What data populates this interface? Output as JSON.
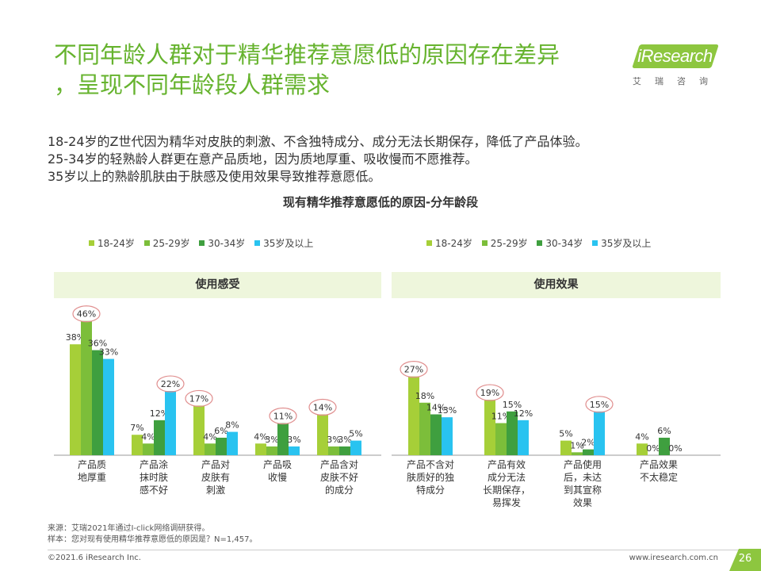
{
  "header": {
    "title_lines": [
      "不同年龄人群对于精华推荐意愿低的原因存在差异",
      "，呈现不同年龄段人群需求"
    ],
    "logo_text": "iResearch",
    "logo_sub": "艾瑞咨询"
  },
  "summary": [
    "18-24岁的Z世代因为精华对皮肤的刺激、不含独特成分、成分无法长期保存，降低了产品体验。",
    "25-34岁的轻熟龄人群更在意产品质地，因为质地厚重、吸收慢而不愿推荐。",
    "35岁以上的熟龄肌肤由于肤感及使用效果导致推荐意愿低。"
  ],
  "colors": {
    "accent": "#66b32e",
    "series": [
      "#a6cf38",
      "#7cbe3a",
      "#3f9f3f",
      "#29c3f0"
    ],
    "highlight": "#e08e8e",
    "panel_bg": "#eef6dc"
  },
  "chart_data": {
    "type": "bar",
    "title": "现有精华推荐意愿低的原因-分年龄段",
    "series_names": [
      "18-24岁",
      "25-29岁",
      "30-34岁",
      "35岁及以上"
    ],
    "panels": [
      {
        "name": "使用感受",
        "ylim": [
          0,
          50
        ],
        "categories": [
          {
            "label_lines": [
              "产品质",
              "地厚重"
            ],
            "values": [
              38,
              46,
              36,
              33
            ],
            "highlight": 1
          },
          {
            "label_lines": [
              "产品涂",
              "抹时肤",
              "感不好"
            ],
            "values": [
              7,
              4,
              12,
              22
            ],
            "highlight": 3
          },
          {
            "label_lines": [
              "产品对",
              "皮肤有",
              "刺激"
            ],
            "values": [
              17,
              4,
              6,
              8
            ],
            "highlight": 0
          },
          {
            "label_lines": [
              "产品吸",
              "收慢"
            ],
            "values": [
              4,
              3,
              11,
              3
            ],
            "highlight": 2
          },
          {
            "label_lines": [
              "产品含对",
              "皮肤不好",
              "的成分"
            ],
            "values": [
              14,
              3,
              3,
              5
            ],
            "highlight": 0
          }
        ]
      },
      {
        "name": "使用效果",
        "ylim": [
          0,
          50
        ],
        "categories": [
          {
            "label_lines": [
              "产品不含对",
              "肤质好的独",
              "特成分"
            ],
            "values": [
              27,
              18,
              14,
              13
            ],
            "highlight": 0
          },
          {
            "label_lines": [
              "产品有效",
              "成分无法",
              "长期保存，",
              "易挥发"
            ],
            "values": [
              19,
              11,
              15,
              12
            ],
            "highlight": 0
          },
          {
            "label_lines": [
              "产品使用",
              "后，未达",
              "到其宣称",
              "效果"
            ],
            "values": [
              5,
              1,
              2,
              15
            ],
            "highlight": 3
          },
          {
            "label_lines": [
              "产品效果",
              "不太稳定"
            ],
            "values": [
              4,
              0,
              6,
              0
            ],
            "highlight": -1
          }
        ]
      }
    ]
  },
  "footer": {
    "source_lines": [
      "来源：艾瑞2021年通过I-click网络调研获得。",
      "样本：您对现有使用精华推荐意愿低的原因是？N=1,457。"
    ],
    "copyright": "©2021.6 iResearch Inc.",
    "website": "www.iresearch.com.cn",
    "page_number": "26"
  }
}
